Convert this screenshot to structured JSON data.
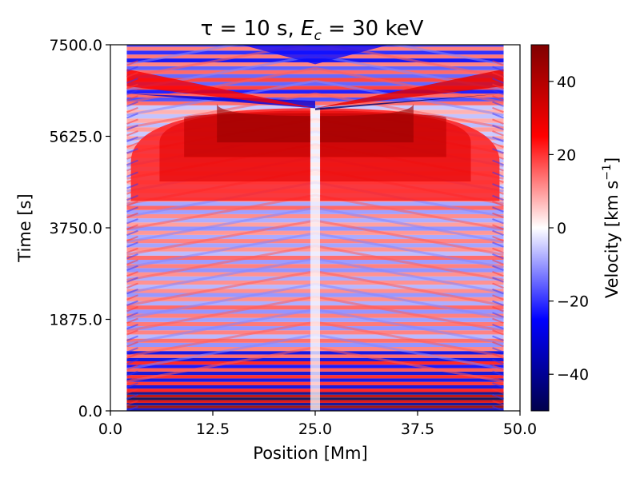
{
  "chart_data": {
    "type": "heatmap",
    "title": {
      "prefix": "τ = 10 s, ",
      "var": "E",
      "sub": "c",
      "suffix": " = 30 keV"
    },
    "xlabel": "Position [Mm]",
    "ylabel": "Time [s]",
    "xlim": [
      0.0,
      50.0
    ],
    "ylim": [
      0.0,
      7500.0
    ],
    "xticks": [
      0.0,
      12.5,
      25.0,
      37.5,
      50.0
    ],
    "xtick_labels": [
      "0.0",
      "12.5",
      "25.0",
      "37.5",
      "50.0"
    ],
    "yticks": [
      0.0,
      1875.0,
      3750.0,
      5625.0,
      7500.0
    ],
    "ytick_labels": [
      "0.0",
      "1875.0",
      "3750.0",
      "5625.0",
      "7500.0"
    ],
    "grid": false,
    "colorbar": {
      "label_base": "Velocity [km s",
      "label_sup": "−1",
      "label_end": "]",
      "colormap": "seismic",
      "vmin": -50,
      "vmax": 50,
      "ticks": [
        -40,
        -20,
        0,
        20,
        40
      ],
      "tick_labels": [
        "−40",
        "−20",
        "0",
        "20",
        "40"
      ]
    },
    "features": {
      "chromosphere_left_mm": 2.0,
      "chromosphere_right_mm": 48.0,
      "max_upflow_kms": 48,
      "max_downflow_kms": -50,
      "upflow_onset_s": 4300,
      "upflow_peak_s": 5700,
      "shock_cross_s": 6200,
      "shock_position_mm": 25.0
    },
    "colors": {
      "strong_red": "#800000",
      "red": "#ff0000",
      "white": "#ffffff",
      "blue": "#0000ff",
      "strong_blue": "#00004c"
    }
  }
}
